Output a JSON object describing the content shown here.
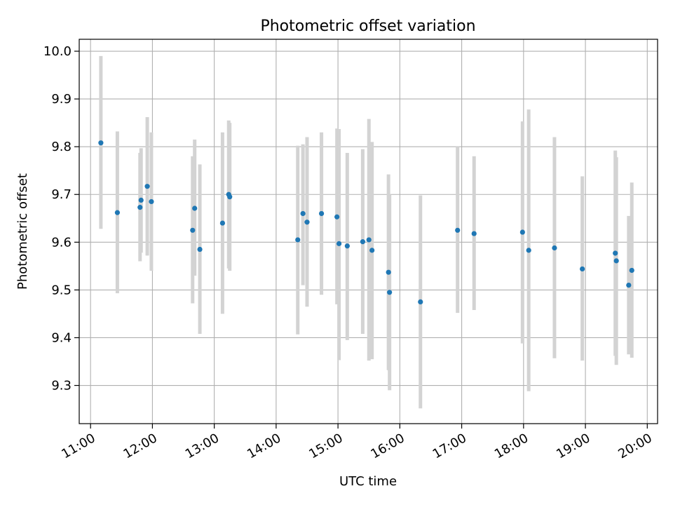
{
  "chart_data": {
    "type": "scatter",
    "title": "Photometric offset variation",
    "xlabel": "UTC time",
    "ylabel": "Photometric offset",
    "x_axis_type": "time",
    "xlim": [
      "10:49",
      "20:10"
    ],
    "ylim": [
      9.22,
      10.025
    ],
    "x_ticks": [
      "11:00",
      "12:00",
      "13:00",
      "14:00",
      "15:00",
      "16:00",
      "17:00",
      "18:00",
      "19:00",
      "20:00"
    ],
    "y_ticks": [
      9.3,
      9.4,
      9.5,
      9.6,
      9.7,
      9.8,
      9.9,
      10.0
    ],
    "y_tick_labels": [
      "9.3",
      "9.4",
      "9.5",
      "9.6",
      "9.7",
      "9.8",
      "9.9",
      "10.0"
    ],
    "grid": true,
    "colors": {
      "points": "#1f77b4",
      "error_bars": "#d3d3d3",
      "grid": "#b0b0b0"
    },
    "points": [
      {
        "x": "11:10",
        "y": 9.808,
        "lo": 9.628,
        "hi": 9.99
      },
      {
        "x": "11:26",
        "y": 9.662,
        "lo": 9.493,
        "hi": 9.832
      },
      {
        "x": "11:48",
        "y": 9.673,
        "lo": 9.56,
        "hi": 9.787
      },
      {
        "x": "11:49",
        "y": 9.688,
        "lo": 9.578,
        "hi": 9.797
      },
      {
        "x": "11:55",
        "y": 9.717,
        "lo": 9.572,
        "hi": 9.862
      },
      {
        "x": "11:59",
        "y": 9.685,
        "lo": 9.54,
        "hi": 9.83
      },
      {
        "x": "12:39",
        "y": 9.625,
        "lo": 9.472,
        "hi": 9.78
      },
      {
        "x": "12:41",
        "y": 9.671,
        "lo": 9.53,
        "hi": 9.815
      },
      {
        "x": "12:46",
        "y": 9.585,
        "lo": 9.408,
        "hi": 9.763
      },
      {
        "x": "13:08",
        "y": 9.64,
        "lo": 9.45,
        "hi": 9.83
      },
      {
        "x": "13:14",
        "y": 9.7,
        "lo": 9.545,
        "hi": 9.855
      },
      {
        "x": "13:15",
        "y": 9.695,
        "lo": 9.54,
        "hi": 9.85
      },
      {
        "x": "14:21",
        "y": 9.605,
        "lo": 9.407,
        "hi": 9.802
      },
      {
        "x": "14:26",
        "y": 9.66,
        "lo": 9.51,
        "hi": 9.805
      },
      {
        "x": "14:30",
        "y": 9.642,
        "lo": 9.465,
        "hi": 9.82
      },
      {
        "x": "14:44",
        "y": 9.66,
        "lo": 9.49,
        "hi": 9.83
      },
      {
        "x": "14:59",
        "y": 9.653,
        "lo": 9.47,
        "hi": 9.838
      },
      {
        "x": "15:01",
        "y": 9.597,
        "lo": 9.353,
        "hi": 9.837
      },
      {
        "x": "15:09",
        "y": 9.592,
        "lo": 9.395,
        "hi": 9.787
      },
      {
        "x": "15:24",
        "y": 9.601,
        "lo": 9.408,
        "hi": 9.795
      },
      {
        "x": "15:30",
        "y": 9.605,
        "lo": 9.352,
        "hi": 9.858
      },
      {
        "x": "15:33",
        "y": 9.583,
        "lo": 9.355,
        "hi": 9.81
      },
      {
        "x": "15:49",
        "y": 9.537,
        "lo": 9.332,
        "hi": 9.742
      },
      {
        "x": "15:50",
        "y": 9.495,
        "lo": 9.29,
        "hi": 9.7
      },
      {
        "x": "16:20",
        "y": 9.475,
        "lo": 9.252,
        "hi": 9.698
      },
      {
        "x": "16:56",
        "y": 9.625,
        "lo": 9.452,
        "hi": 9.8
      },
      {
        "x": "17:12",
        "y": 9.618,
        "lo": 9.458,
        "hi": 9.78
      },
      {
        "x": "17:59",
        "y": 9.621,
        "lo": 9.388,
        "hi": 9.853
      },
      {
        "x": "18:05",
        "y": 9.583,
        "lo": 9.288,
        "hi": 9.878
      },
      {
        "x": "18:30",
        "y": 9.588,
        "lo": 9.357,
        "hi": 9.82
      },
      {
        "x": "18:57",
        "y": 9.544,
        "lo": 9.352,
        "hi": 9.738
      },
      {
        "x": "19:29",
        "y": 9.577,
        "lo": 9.362,
        "hi": 9.792
      },
      {
        "x": "19:30",
        "y": 9.561,
        "lo": 9.343,
        "hi": 9.778
      },
      {
        "x": "19:42",
        "y": 9.51,
        "lo": 9.365,
        "hi": 9.655
      },
      {
        "x": "19:45",
        "y": 9.541,
        "lo": 9.358,
        "hi": 9.725
      }
    ]
  }
}
